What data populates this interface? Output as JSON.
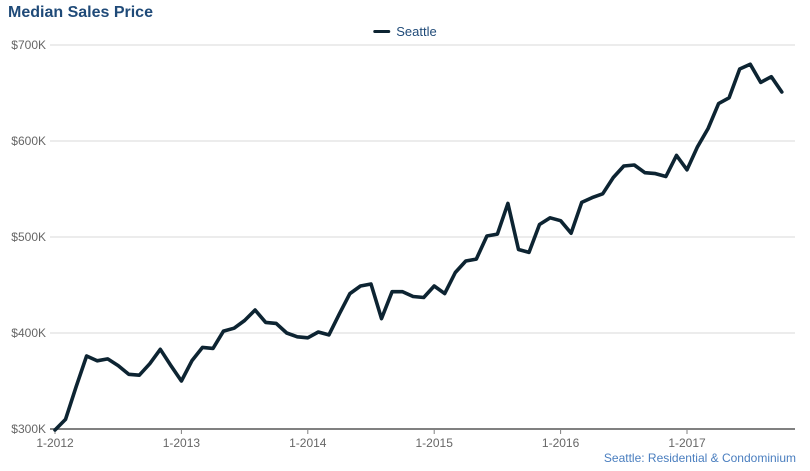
{
  "chart": {
    "title": "Median Sales Price",
    "credits": "Seattle: Residential & Condominium"
  },
  "chart_data": {
    "type": "line",
    "title": "Median Sales Price",
    "legend": {
      "position": "top-center",
      "entries": [
        {
          "label": "Seattle",
          "color": "#0d2432"
        }
      ]
    },
    "x_axis": {
      "tick_labels": [
        "1-2012",
        "1-2013",
        "1-2014",
        "1-2015",
        "1-2016",
        "1-2017"
      ],
      "tick_month_indices": [
        0,
        12,
        24,
        36,
        48,
        60
      ]
    },
    "y_axis": {
      "tick_labels": [
        "$700K",
        "$600K",
        "$500K",
        "$400K",
        "$300K"
      ],
      "tick_values": [
        700,
        600,
        500,
        400,
        300
      ],
      "range": [
        300,
        700
      ],
      "unit": "USD thousands"
    },
    "grid": "horizontal-only",
    "series": [
      {
        "name": "Seattle",
        "color": "#0d2432",
        "start": "2012-01",
        "end": "2017-10",
        "frequency": "monthly",
        "unit": "USD thousands",
        "values": [
          299,
          310,
          344,
          376,
          371,
          373,
          366,
          357,
          356,
          368,
          383,
          366,
          350,
          371,
          385,
          384,
          402,
          405,
          413,
          424,
          411,
          410,
          400,
          396,
          395,
          401,
          398,
          420,
          441,
          449,
          451,
          415,
          443,
          443,
          438,
          437,
          449,
          441,
          463,
          475,
          477,
          501,
          503,
          535,
          487,
          484,
          513,
          520,
          517,
          504,
          536,
          541,
          545,
          562,
          574,
          575,
          567,
          566,
          563,
          585,
          570,
          594,
          613,
          639,
          645,
          675,
          680,
          661,
          667,
          651
        ]
      }
    ],
    "footer": "Seattle: Residential & Condominium",
    "colors": {
      "title_text": "#1f4a78",
      "legend_text": "#1f4a78",
      "axis_text": "#666666",
      "gridline": "#d8d8d8",
      "axis_line": "#808080",
      "series_line": "#0d2432",
      "credits_text": "#4a7ebf",
      "background": "#ffffff"
    }
  }
}
